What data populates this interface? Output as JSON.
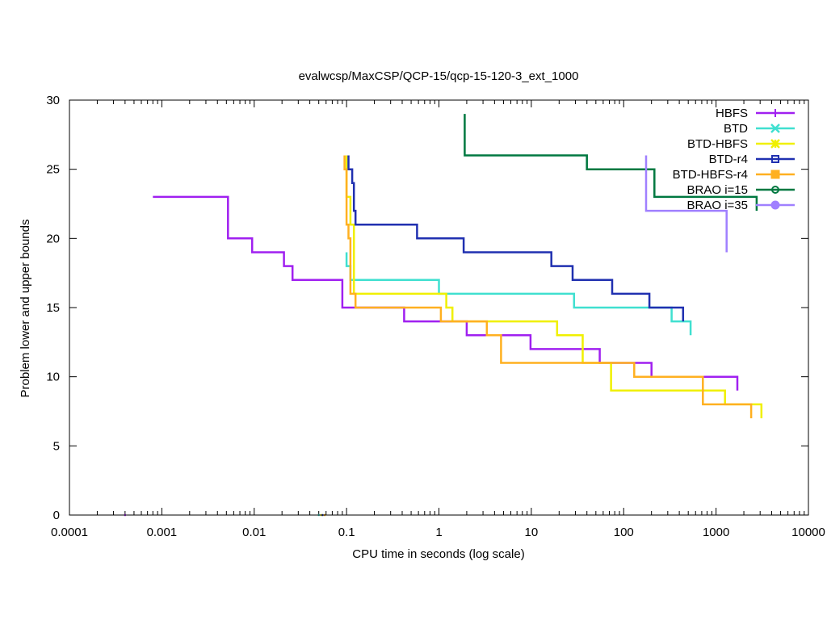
{
  "chart_data": {
    "type": "line",
    "title": "evalwcsp/MaxCSP/QCP-15/qcp-15-120-3_ext_1000",
    "xlabel": "CPU time in seconds (log scale)",
    "ylabel": "Problem lower and upper bounds",
    "xscale": "log",
    "xlim": [
      0.0001,
      10000
    ],
    "ylim": [
      0,
      30
    ],
    "xticks": [
      0.0001,
      0.001,
      0.01,
      0.1,
      1,
      10,
      100,
      1000,
      10000
    ],
    "xtick_labels": [
      "0.0001",
      "0.001",
      "0.01",
      "0.1",
      "1",
      "10",
      "100",
      "1000",
      "10000"
    ],
    "yticks": [
      0,
      5,
      10,
      15,
      20,
      25,
      30
    ],
    "ytick_labels": [
      "0",
      "5",
      "10",
      "15",
      "20",
      "25",
      "30"
    ],
    "grid": false,
    "legend_position": "top-right",
    "series": [
      {
        "name": "HBFS",
        "color": "#a020f0",
        "marker": "plus",
        "upper": [
          [
            0.0008,
            23
          ],
          [
            0.0052,
            23
          ],
          [
            0.0052,
            20
          ],
          [
            0.0095,
            20
          ],
          [
            0.0095,
            19
          ],
          [
            0.021,
            19
          ],
          [
            0.021,
            18
          ],
          [
            0.026,
            18
          ],
          [
            0.026,
            17
          ],
          [
            0.09,
            17
          ],
          [
            0.09,
            15
          ],
          [
            0.12,
            15
          ],
          [
            0.12,
            15
          ],
          [
            0.42,
            15
          ],
          [
            0.42,
            14
          ],
          [
            1.05,
            14
          ],
          [
            1.05,
            14
          ],
          [
            2.0,
            14
          ],
          [
            2.0,
            13
          ],
          [
            3.3,
            13
          ],
          [
            3.3,
            13
          ],
          [
            9.8,
            13
          ],
          [
            9.8,
            12
          ],
          [
            55,
            12
          ],
          [
            55,
            11
          ],
          [
            110,
            11
          ],
          [
            110,
            11
          ],
          [
            200,
            11
          ],
          [
            200,
            10
          ],
          [
            1700,
            10
          ],
          [
            1700,
            9
          ]
        ],
        "lower": [
          [
            0.0004,
            0
          ]
        ]
      },
      {
        "name": "BTD",
        "color": "#40e0d0",
        "marker": "x",
        "upper": [
          [
            0.1,
            19
          ],
          [
            0.1,
            18
          ],
          [
            0.11,
            18
          ],
          [
            0.11,
            17
          ],
          [
            1.0,
            17
          ],
          [
            1.0,
            16
          ],
          [
            29,
            16
          ],
          [
            29,
            15
          ],
          [
            330,
            15
          ],
          [
            330,
            14
          ],
          [
            530,
            14
          ],
          [
            530,
            13
          ]
        ],
        "lower": [
          [
            0.05,
            0
          ]
        ]
      },
      {
        "name": "BTD-HBFS",
        "color": "#f0f000",
        "marker": "star",
        "upper": [
          [
            0.1,
            26
          ],
          [
            0.1,
            23
          ],
          [
            0.11,
            23
          ],
          [
            0.11,
            21
          ],
          [
            0.12,
            21
          ],
          [
            0.12,
            16
          ],
          [
            1.2,
            16
          ],
          [
            1.2,
            15
          ],
          [
            1.4,
            15
          ],
          [
            1.4,
            14
          ],
          [
            19,
            14
          ],
          [
            19,
            13
          ],
          [
            36,
            13
          ],
          [
            36,
            11
          ],
          [
            73,
            11
          ],
          [
            73,
            9
          ],
          [
            1250,
            9
          ],
          [
            1250,
            8
          ],
          [
            3100,
            8
          ],
          [
            3100,
            7
          ]
        ],
        "lower": [
          [
            0.053,
            0
          ]
        ]
      },
      {
        "name": "BTD-r4",
        "color": "#2030b0",
        "marker": "square",
        "upper": [
          [
            0.105,
            26
          ],
          [
            0.105,
            25
          ],
          [
            0.115,
            25
          ],
          [
            0.115,
            24
          ],
          [
            0.12,
            24
          ],
          [
            0.12,
            22
          ],
          [
            0.125,
            22
          ],
          [
            0.125,
            21
          ],
          [
            0.58,
            21
          ],
          [
            0.58,
            20
          ],
          [
            1.85,
            20
          ],
          [
            1.85,
            19
          ],
          [
            16.5,
            19
          ],
          [
            16.5,
            18
          ],
          [
            28,
            18
          ],
          [
            28,
            17
          ],
          [
            75,
            17
          ],
          [
            75,
            16
          ],
          [
            190,
            16
          ],
          [
            190,
            15
          ],
          [
            440,
            15
          ],
          [
            440,
            14
          ]
        ],
        "lower": [
          [
            0.055,
            0
          ]
        ]
      },
      {
        "name": "BTD-HBFS-r4",
        "color": "#ffb020",
        "marker": "filled-square",
        "upper": [
          [
            0.095,
            26
          ],
          [
            0.095,
            25
          ],
          [
            0.1,
            25
          ],
          [
            0.1,
            21
          ],
          [
            0.105,
            21
          ],
          [
            0.105,
            20
          ],
          [
            0.11,
            20
          ],
          [
            0.11,
            16
          ],
          [
            0.125,
            16
          ],
          [
            0.125,
            15
          ],
          [
            1.05,
            15
          ],
          [
            1.05,
            14
          ],
          [
            3.3,
            14
          ],
          [
            3.3,
            13
          ],
          [
            4.7,
            13
          ],
          [
            4.7,
            11
          ],
          [
            130,
            11
          ],
          [
            130,
            10
          ],
          [
            720,
            10
          ],
          [
            720,
            8
          ],
          [
            2400,
            8
          ],
          [
            2400,
            7
          ]
        ],
        "lower": [
          [
            0.058,
            0
          ]
        ]
      },
      {
        "name": "BRAO i=15",
        "color": "#007840",
        "marker": "circle",
        "upper": [
          [
            1.9,
            29
          ],
          [
            1.9,
            26
          ],
          [
            40,
            26
          ],
          [
            40,
            25
          ],
          [
            215,
            25
          ],
          [
            215,
            23
          ],
          [
            2750,
            23
          ],
          [
            2750,
            22
          ]
        ],
        "lower": []
      },
      {
        "name": "BRAO i=35",
        "color": "#a080ff",
        "marker": "filled-circle",
        "upper": [
          [
            175,
            26
          ],
          [
            175,
            22
          ],
          [
            1300,
            22
          ],
          [
            1300,
            19
          ]
        ],
        "lower": []
      }
    ]
  }
}
